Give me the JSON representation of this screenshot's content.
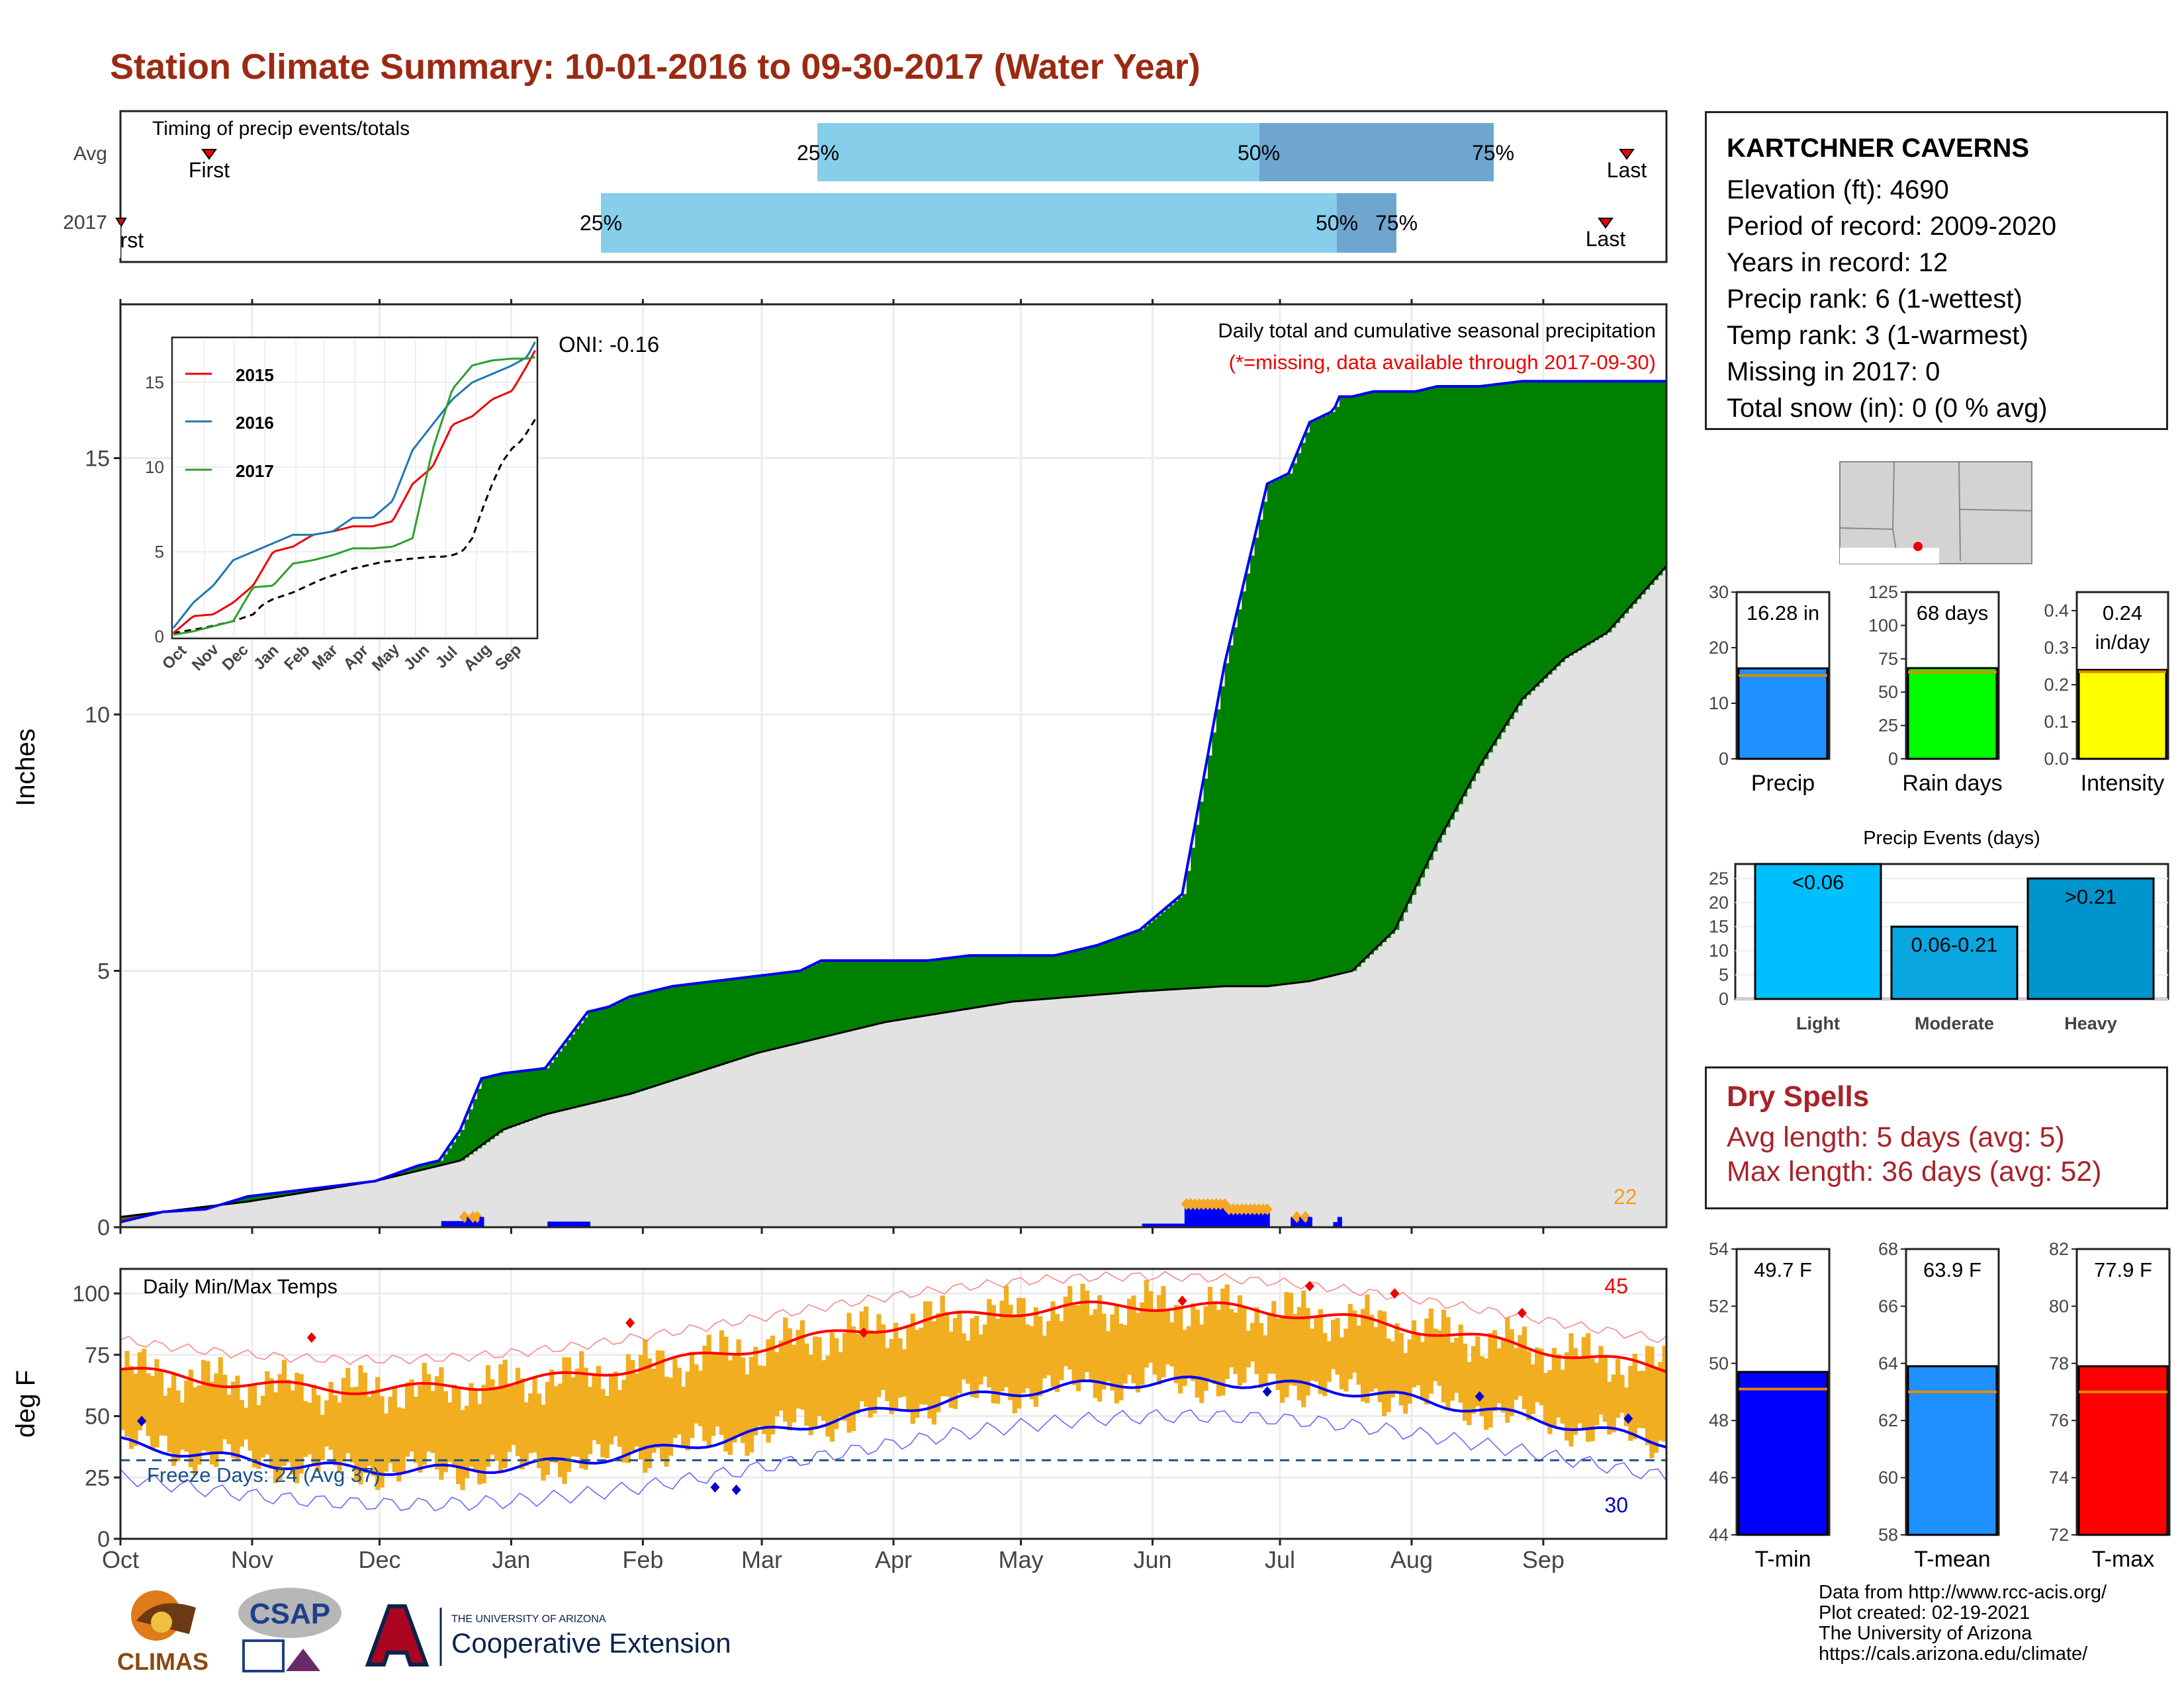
{
  "title": "Station Climate Summary: 10-01-2016 to 09-30-2017 (Water Year)",
  "colors": {
    "title": "#9b2a12",
    "green": "#008000",
    "brown": "#7f4f10",
    "grey": "#e2e2e2",
    "outline": "#0000ee",
    "bar": "#0000ff",
    "temp_band": "#f0ae20",
    "tmax_line": "#ff0000",
    "tmin_line": "#0000ff"
  },
  "station": {
    "name": "KARTCHNER CAVERNS",
    "elevation": "Elevation (ft): 4690",
    "period": "Period of record: 2009-2020",
    "years": "Years in record: 12",
    "precip_rank": "Precip rank: 6 (1-wettest)",
    "temp_rank": "Temp rank: 3 (1-warmest)",
    "missing": "Missing in 2017: 0",
    "snow": "Total snow (in): 0 (0 % avg)"
  },
  "timing": {
    "label": "Timing of precip events/totals",
    "rows": [
      "Avg",
      "2017"
    ],
    "avg": {
      "first": "First",
      "last": "Last",
      "p25": "25%",
      "p50": "50%",
      "p75": "75%"
    },
    "y2017": {
      "first": "First",
      "last": "Last",
      "p25": "25%",
      "p50": "50%",
      "p75": "75%"
    }
  },
  "main_chart": {
    "ylabel": "Inches",
    "months": [
      "Oct",
      "Nov",
      "Dec",
      "Jan",
      "Feb",
      "Mar",
      "Apr",
      "May",
      "Jun",
      "Jul",
      "Aug",
      "Sep"
    ],
    "yticks": [
      "0",
      "5",
      "10",
      "15"
    ],
    "header": "Daily total and cumulative seasonal precipitation",
    "missing_note": "(*=missing, data available through 2017-09-30)",
    "oni": "ONI: -0.16",
    "count_label": "22"
  },
  "inset": {
    "yticks": [
      "0",
      "5",
      "10",
      "15"
    ],
    "months": [
      "Oct",
      "Nov",
      "Dec",
      "Jan",
      "Feb",
      "Mar",
      "Apr",
      "May",
      "Jun",
      "Jul",
      "Aug",
      "Sep"
    ],
    "legend": [
      "2015",
      "2016",
      "2017"
    ]
  },
  "temp_chart": {
    "title": "Daily Min/Max Temps",
    "ylabel": "deg F",
    "yticks": [
      "0",
      "25",
      "50",
      "75",
      "100"
    ],
    "freeze": "Freeze Days: 24 (Avg 37)",
    "count_hot": "45",
    "count_cold": "30"
  },
  "chart_data": [
    {
      "type": "area",
      "title": "Daily total and cumulative seasonal precipitation",
      "ylabel": "Inches",
      "ylim": [
        0,
        18
      ],
      "x_months": [
        "Oct",
        "Nov",
        "Dec",
        "Jan",
        "Feb",
        "Mar",
        "Apr",
        "May",
        "Jun",
        "Jul",
        "Aug",
        "Sep"
      ],
      "series": [
        {
          "name": "2017",
          "x": [
            0,
            10,
            20,
            30,
            40,
            50,
            60,
            70,
            75,
            80,
            85,
            90,
            100,
            110,
            115,
            120,
            130,
            140,
            150,
            160,
            165,
            170,
            180,
            190,
            200,
            210,
            220,
            230,
            240,
            250,
            260,
            270,
            275,
            280,
            285,
            286,
            287,
            290,
            295,
            300,
            305,
            310,
            320,
            330,
            340,
            350,
            360,
            364
          ],
          "y": [
            0.1,
            0.3,
            0.35,
            0.6,
            0.7,
            0.8,
            0.9,
            1.2,
            1.3,
            1.9,
            2.9,
            3.0,
            3.1,
            4.2,
            4.3,
            4.5,
            4.7,
            4.8,
            4.9,
            5.0,
            5.2,
            5.2,
            5.2,
            5.2,
            5.3,
            5.3,
            5.3,
            5.5,
            5.8,
            6.5,
            11.0,
            14.5,
            14.7,
            15.7,
            15.9,
            16.0,
            16.2,
            16.2,
            16.3,
            16.3,
            16.3,
            16.4,
            16.4,
            16.5,
            16.5,
            16.5,
            16.5,
            16.5
          ]
        },
        {
          "name": "Avg",
          "x": [
            0,
            30,
            60,
            80,
            90,
            100,
            120,
            150,
            180,
            210,
            240,
            260,
            270,
            280,
            290,
            300,
            310,
            320,
            330,
            340,
            350,
            364
          ],
          "y": [
            0.2,
            0.5,
            0.9,
            1.3,
            1.9,
            2.2,
            2.6,
            3.4,
            4.0,
            4.4,
            4.6,
            4.7,
            4.7,
            4.8,
            5.0,
            5.8,
            7.5,
            9.0,
            10.3,
            11.1,
            11.6,
            12.9
          ]
        }
      ]
    },
    {
      "type": "line",
      "title": "",
      "ylim": [
        0,
        17.5
      ],
      "series": [
        {
          "name": "2015",
          "x": [
            0,
            20,
            40,
            60,
            80,
            100,
            120,
            140,
            160,
            180,
            200,
            220,
            240,
            260,
            280,
            300,
            320,
            340,
            355,
            364
          ],
          "y": [
            0.2,
            1.2,
            1.3,
            2.0,
            3.0,
            5.0,
            5.3,
            6.0,
            6.2,
            6.5,
            6.5,
            6.8,
            9.0,
            10.0,
            12.5,
            13.0,
            14.0,
            14.5,
            16.0,
            17.0
          ]
        },
        {
          "name": "2016",
          "x": [
            0,
            20,
            40,
            60,
            80,
            100,
            120,
            140,
            160,
            180,
            200,
            220,
            240,
            260,
            280,
            300,
            320,
            340,
            355,
            364
          ],
          "y": [
            0.5,
            2.0,
            3.0,
            4.5,
            5.0,
            5.5,
            6.0,
            6.0,
            6.2,
            7.0,
            7.0,
            8.0,
            11.0,
            12.5,
            14.0,
            15.0,
            15.5,
            16.0,
            16.5,
            17.5
          ]
        },
        {
          "name": "2017",
          "x": [
            0,
            20,
            40,
            60,
            80,
            100,
            120,
            140,
            160,
            180,
            200,
            220,
            240,
            260,
            280,
            300,
            320,
            340,
            355,
            364
          ],
          "y": [
            0.1,
            0.3,
            0.6,
            0.9,
            2.9,
            3.0,
            4.3,
            4.5,
            4.8,
            5.2,
            5.2,
            5.3,
            5.8,
            11.0,
            14.6,
            16.0,
            16.3,
            16.4,
            16.4,
            16.5
          ]
        }
      ]
    },
    {
      "type": "bar",
      "title": "",
      "categories": [
        "Precip",
        "Rain days",
        "Intensity"
      ],
      "values": [
        16.28,
        68,
        0.24
      ],
      "labels": [
        "16.28 in",
        "68 days",
        "0.24 in/day"
      ],
      "ylims": [
        [
          0,
          30
        ],
        [
          0,
          125
        ],
        [
          0,
          0.45
        ]
      ],
      "yticks": [
        [
          "0",
          "10",
          "20",
          "30"
        ],
        [
          "0",
          "25",
          "50",
          "75",
          "100",
          "125"
        ],
        [
          "0.0",
          "0.1",
          "0.2",
          "0.3",
          "0.4"
        ]
      ]
    },
    {
      "type": "bar",
      "title": "Precip Events (days)",
      "categories": [
        "Light",
        "Moderate",
        "Heavy"
      ],
      "bar_labels": [
        "<0.06",
        "0.06-0.21",
        ">0.21"
      ],
      "values": [
        28,
        15,
        25
      ],
      "ylim": [
        0,
        28
      ],
      "yticks": [
        "0",
        "5",
        "10",
        "15",
        "20",
        "25"
      ]
    },
    {
      "type": "bar",
      "title": "",
      "categories": [
        "T-min",
        "T-mean",
        "T-max"
      ],
      "values": [
        49.7,
        63.9,
        77.9
      ],
      "labels": [
        "49.7 F",
        "63.9 F",
        "77.9 F"
      ],
      "ylims": [
        [
          44,
          54
        ],
        [
          58,
          68
        ],
        [
          72,
          82
        ]
      ],
      "yticks": [
        [
          "44",
          "46",
          "48",
          "50",
          "52",
          "54"
        ],
        [
          "58",
          "60",
          "62",
          "64",
          "66",
          "68"
        ],
        [
          "72",
          "74",
          "76",
          "78",
          "80",
          "82"
        ]
      ]
    }
  ],
  "dry_spells": {
    "title": "Dry Spells",
    "avg": "Avg length: 5 days (avg: 5)",
    "max": "Max length: 36 days (avg: 52)"
  },
  "credits": [
    "Data from http://www.rcc-acis.org/",
    "Plot created: 02-19-2021",
    "The University of Arizona",
    "https://cals.arizona.edu/climate/"
  ],
  "logos": {
    "climas": "CLIMAS",
    "csap": "CSAP",
    "ua_small": "THE UNIVERSITY OF ARIZONA",
    "ua_big": "Cooperative Extension"
  }
}
